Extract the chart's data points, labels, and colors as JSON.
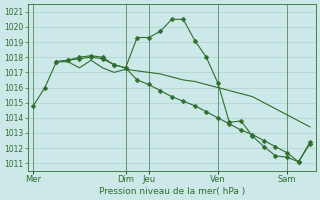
{
  "bg_color": "#cce8e8",
  "grid_color": "#aacaca",
  "line_color": "#2d6e2d",
  "xlabel": "Pression niveau de la mer( hPa )",
  "ylim": [
    1010.5,
    1021.5
  ],
  "yticks": [
    1011,
    1012,
    1013,
    1014,
    1015,
    1016,
    1017,
    1018,
    1019,
    1020,
    1021
  ],
  "day_labels": [
    "Mer",
    "Dim",
    "Jeu",
    "Ven",
    "Sam"
  ],
  "day_x": [
    0,
    8,
    10,
    16,
    22
  ],
  "xlim": [
    -0.5,
    24.5
  ],
  "series1_x": [
    0,
    1,
    2,
    3,
    4,
    5,
    6,
    7,
    8,
    9,
    10,
    11,
    12,
    13,
    14,
    15,
    16,
    17,
    18,
    19,
    20,
    21,
    22,
    23,
    24
  ],
  "series1_y": [
    1014.8,
    1016.0,
    1017.7,
    1017.8,
    1018.0,
    1018.1,
    1018.0,
    1017.5,
    1017.3,
    1019.3,
    1019.3,
    1019.7,
    1020.5,
    1020.5,
    1019.1,
    1018.0,
    1016.3,
    1013.7,
    1013.8,
    1012.8,
    1012.1,
    1011.5,
    1011.4,
    1011.1,
    1012.4
  ],
  "series2_x": [
    2,
    3,
    4,
    5,
    6,
    7,
    8,
    9,
    10,
    11,
    12,
    13,
    14,
    15,
    16,
    17,
    18,
    19,
    20,
    21,
    22,
    23,
    24
  ],
  "series2_y": [
    1017.7,
    1017.7,
    1017.3,
    1017.8,
    1017.3,
    1017.0,
    1017.2,
    1017.1,
    1017.0,
    1016.9,
    1016.7,
    1016.5,
    1016.4,
    1016.2,
    1016.0,
    1015.8,
    1015.6,
    1015.4,
    1015.0,
    1014.6,
    1014.2,
    1013.8,
    1013.4
  ],
  "series3_x": [
    2,
    3,
    4,
    5,
    6,
    7,
    8,
    9,
    10,
    11,
    12,
    13,
    14,
    15,
    16,
    17,
    18,
    19,
    20,
    21,
    22,
    23,
    24
  ],
  "series3_y": [
    1017.7,
    1017.8,
    1017.9,
    1018.0,
    1017.9,
    1017.5,
    1017.3,
    1016.5,
    1016.2,
    1015.8,
    1015.4,
    1015.1,
    1014.8,
    1014.4,
    1014.0,
    1013.6,
    1013.2,
    1012.9,
    1012.5,
    1012.1,
    1011.7,
    1011.1,
    1012.3
  ]
}
